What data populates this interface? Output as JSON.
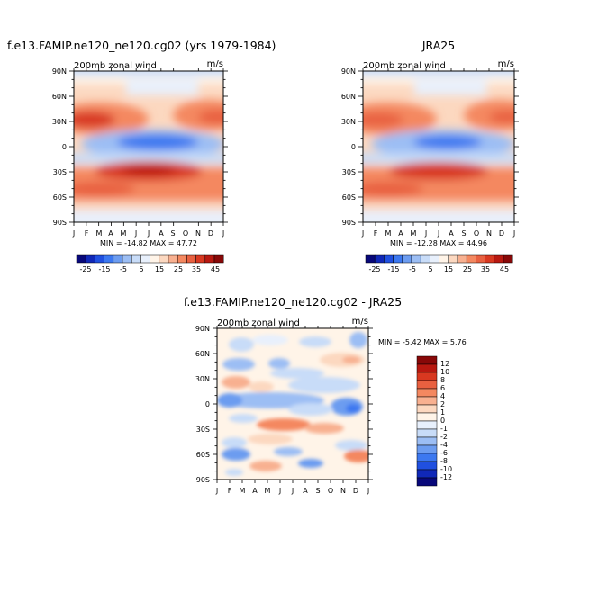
{
  "chart_data": [
    {
      "type": "heatmap",
      "title": "f.e13.FAMIP.ne120_ne120.cg02 (yrs 1979-1984)",
      "subtitle_left": "200mb zonal wind",
      "units": "m/s",
      "x_tick_labels": [
        "J",
        "F",
        "M",
        "A",
        "M",
        "J",
        "J",
        "A",
        "S",
        "O",
        "N",
        "D",
        "J"
      ],
      "y_tick_labels": [
        "90N",
        "60N",
        "30N",
        "0",
        "30S",
        "60S",
        "90S"
      ],
      "stats": "MIN = -14.82  MAX =  47.72",
      "colorbar_levels": [
        "-25",
        "-15",
        "-5",
        "5",
        "15",
        "25",
        "35",
        "45"
      ]
    },
    {
      "type": "heatmap",
      "title": "JRA25",
      "subtitle_left": "200mb zonal wind",
      "units": "m/s",
      "x_tick_labels": [
        "J",
        "F",
        "M",
        "A",
        "M",
        "J",
        "J",
        "A",
        "S",
        "O",
        "N",
        "D",
        "J"
      ],
      "y_tick_labels": [
        "90N",
        "60N",
        "30N",
        "0",
        "30S",
        "60S",
        "90S"
      ],
      "stats": "MIN = -12.28  MAX =  44.96",
      "colorbar_levels": [
        "-25",
        "-15",
        "-5",
        "5",
        "15",
        "25",
        "35",
        "45"
      ]
    },
    {
      "type": "heatmap",
      "title": "f.e13.FAMIP.ne120_ne120.cg02 - JRA25",
      "subtitle_left": "200mb zonal wind",
      "units": "m/s",
      "x_tick_labels": [
        "J",
        "F",
        "M",
        "A",
        "M",
        "J",
        "J",
        "A",
        "S",
        "O",
        "N",
        "D",
        "J"
      ],
      "y_tick_labels": [
        "90N",
        "60N",
        "30N",
        "0",
        "30S",
        "60S",
        "90S"
      ],
      "stats": "MIN =  -5.42  MAX =   5.76",
      "colorbar_levels": [
        "12",
        "10",
        "8",
        "6",
        "4",
        "2",
        "1",
        "0",
        "-1",
        "-2",
        "-4",
        "-6",
        "-8",
        "-10",
        "-12"
      ]
    }
  ],
  "colors": {
    "wind_scale": [
      "#08087a",
      "#1028b8",
      "#2050e0",
      "#3c78f0",
      "#6c9cf0",
      "#9cbef4",
      "#c8dcf8",
      "#e8f0fc",
      "#fff4e8",
      "#fcd8c0",
      "#f8b090",
      "#f48860",
      "#e86040",
      "#d83820",
      "#b81810",
      "#880808"
    ],
    "diff_scale": [
      "#08087a",
      "#1028b8",
      "#2050e0",
      "#3c78f0",
      "#6c9cf0",
      "#9cbef4",
      "#c8dcf8",
      "#e8f0fc",
      "#fff4e8",
      "#fcd8c0",
      "#f8b090",
      "#f48860",
      "#e86040",
      "#d83820",
      "#b81810",
      "#880808"
    ]
  }
}
